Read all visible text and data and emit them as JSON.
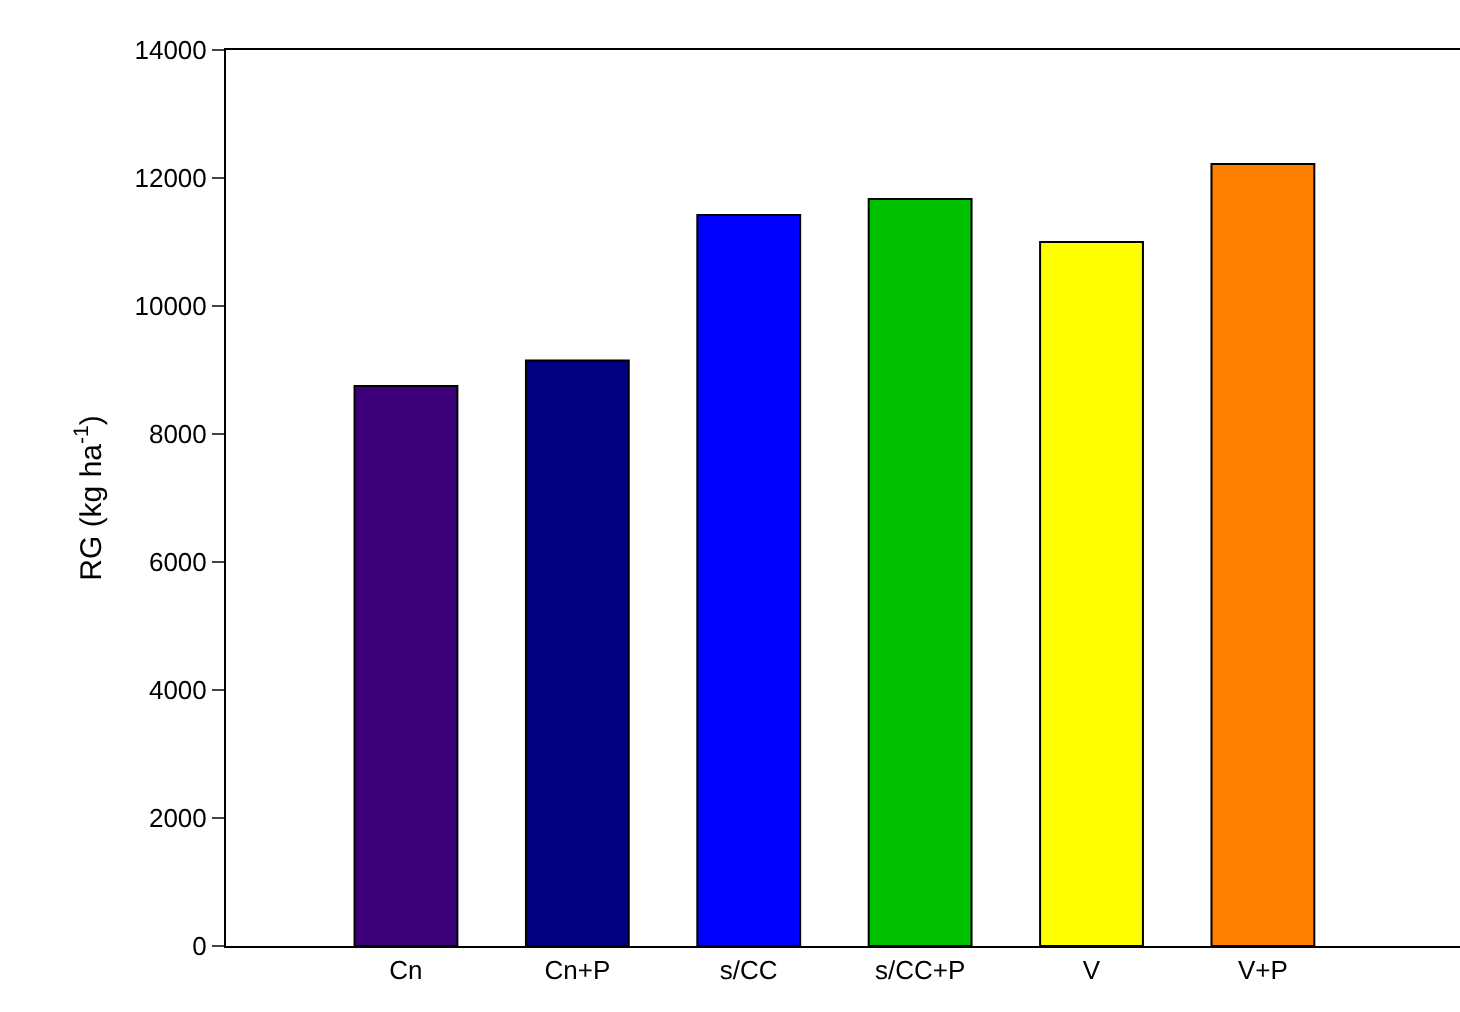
{
  "chart_data": {
    "type": "bar",
    "ylabel": "RG (kg ha$^{-1}$)",
    "categories": [
      "Cn",
      "Cn+P",
      "s/CC",
      "s/CC+P",
      "V",
      "V+P"
    ],
    "values": [
      8750,
      9150,
      11420,
      11670,
      11000,
      12220
    ],
    "colors": [
      "#3c0078",
      "#000080",
      "#0000ff",
      "#00c000",
      "#ffff00",
      "#ff8000"
    ],
    "ylim": [
      0,
      14000
    ],
    "yticks": [
      0,
      2000,
      4000,
      6000,
      8000,
      10000,
      12000,
      14000
    ],
    "grid": false
  }
}
